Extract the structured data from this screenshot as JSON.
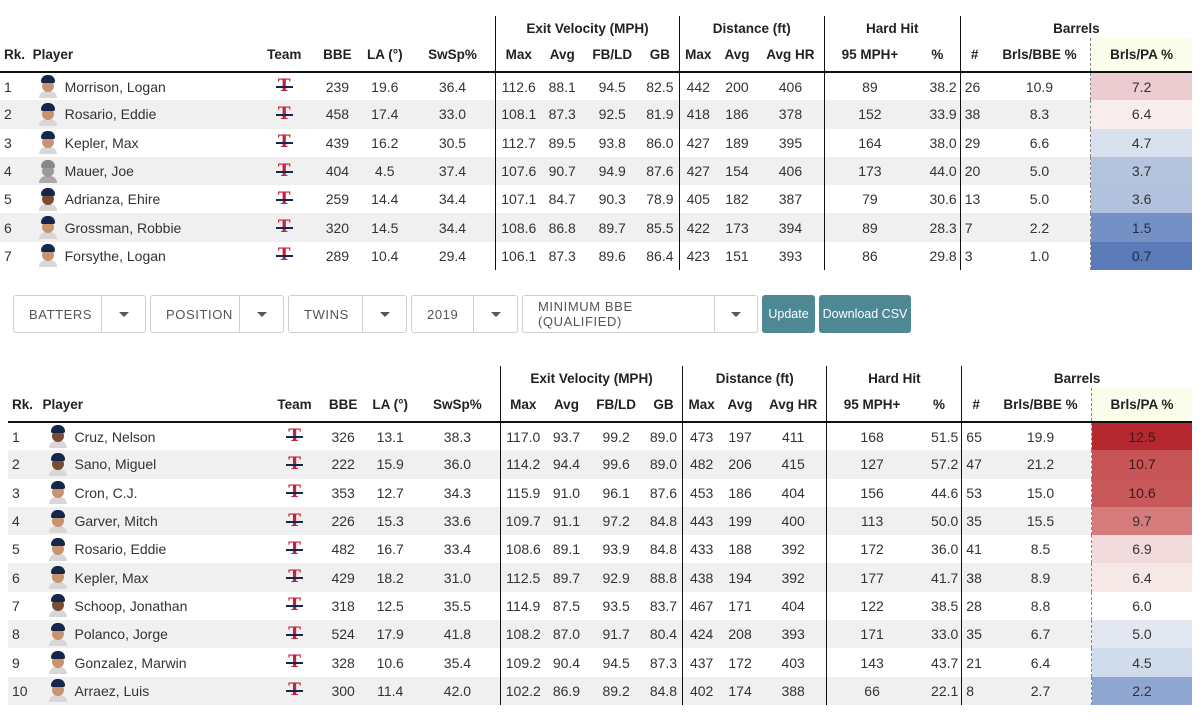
{
  "groups": {
    "exit_velocity": "Exit Velocity (MPH)",
    "distance": "Distance (ft)",
    "hard_hit": "Hard Hit",
    "barrels": "Barrels"
  },
  "columns": {
    "rk": "Rk.",
    "player": "Player",
    "team": "Team",
    "bbe": "BBE",
    "la": "LA (°)",
    "swsp": "SwSp%",
    "ev_max": "Max",
    "ev_avg": "Avg",
    "ev_fbld": "FB/LD",
    "ev_gb": "GB",
    "dist_max": "Max",
    "dist_avg": "Avg",
    "dist_avghr": "Avg HR",
    "hh_95": "95 MPH+",
    "hh_pct": "%",
    "brl_num": "#",
    "brl_bbe": "Brls/BBE %",
    "brl_pa": "Brls/PA %"
  },
  "team_logo": "T",
  "colors": {
    "twins_red": "#c6203e",
    "twins_navy": "#13284c",
    "button_teal": "#4e8894",
    "heat_red": "#b5282f",
    "heat_blue": "#4a6fb0"
  },
  "table_top": [
    {
      "rk": "1",
      "player": "Morrison, Logan",
      "bbe": "239",
      "la": "19.6",
      "swsp": "36.4",
      "ev_max": "112.6",
      "ev_avg": "88.1",
      "ev_fbld": "94.5",
      "ev_gb": "82.5",
      "dist_max": "442",
      "dist_avg": "200",
      "dist_avghr": "406",
      "hh_95": "89",
      "hh_pct": "38.2",
      "brl_num": "26",
      "brl_bbe": "10.9",
      "brl_pa": "7.2",
      "heat": "#ecccd0",
      "face": "light"
    },
    {
      "rk": "2",
      "player": "Rosario, Eddie",
      "bbe": "458",
      "la": "17.4",
      "swsp": "33.0",
      "ev_max": "108.1",
      "ev_avg": "87.3",
      "ev_fbld": "92.5",
      "ev_gb": "81.9",
      "dist_max": "418",
      "dist_avg": "186",
      "dist_avghr": "378",
      "hh_95": "152",
      "hh_pct": "33.9",
      "brl_num": "38",
      "brl_bbe": "8.3",
      "brl_pa": "6.4",
      "heat": "#f9ecec",
      "face": "light"
    },
    {
      "rk": "3",
      "player": "Kepler, Max",
      "bbe": "439",
      "la": "16.2",
      "swsp": "30.5",
      "ev_max": "112.7",
      "ev_avg": "89.5",
      "ev_fbld": "93.8",
      "ev_gb": "86.0",
      "dist_max": "427",
      "dist_avg": "189",
      "dist_avghr": "395",
      "hh_95": "164",
      "hh_pct": "38.0",
      "brl_num": "29",
      "brl_bbe": "6.6",
      "brl_pa": "4.7",
      "heat": "#d9e1ee",
      "face": "light"
    },
    {
      "rk": "4",
      "player": "Mauer, Joe",
      "bbe": "404",
      "la": "4.5",
      "swsp": "37.4",
      "ev_max": "107.6",
      "ev_avg": "90.7",
      "ev_fbld": "94.9",
      "ev_gb": "87.6",
      "dist_max": "427",
      "dist_avg": "154",
      "dist_avghr": "406",
      "hh_95": "173",
      "hh_pct": "44.0",
      "brl_num": "20",
      "brl_bbe": "5.0",
      "brl_pa": "3.7",
      "heat": "#b4c3de",
      "face": "grey"
    },
    {
      "rk": "5",
      "player": "Adrianza, Ehire",
      "bbe": "259",
      "la": "14.4",
      "swsp": "34.4",
      "ev_max": "107.1",
      "ev_avg": "84.7",
      "ev_fbld": "90.3",
      "ev_gb": "78.9",
      "dist_max": "405",
      "dist_avg": "182",
      "dist_avghr": "387",
      "hh_95": "79",
      "hh_pct": "30.6",
      "brl_num": "13",
      "brl_bbe": "5.0",
      "brl_pa": "3.6",
      "heat": "#b2c1dd",
      "face": "dark"
    },
    {
      "rk": "6",
      "player": "Grossman, Robbie",
      "bbe": "320",
      "la": "14.5",
      "swsp": "34.4",
      "ev_max": "108.6",
      "ev_avg": "86.8",
      "ev_fbld": "89.7",
      "ev_gb": "85.5",
      "dist_max": "422",
      "dist_avg": "173",
      "dist_avghr": "394",
      "hh_95": "89",
      "hh_pct": "28.3",
      "brl_num": "7",
      "brl_bbe": "2.2",
      "brl_pa": "1.5",
      "heat": "#7590c4",
      "face": "light"
    },
    {
      "rk": "7",
      "player": "Forsythe, Logan",
      "bbe": "289",
      "la": "10.4",
      "swsp": "29.4",
      "ev_max": "106.1",
      "ev_avg": "87.3",
      "ev_fbld": "89.6",
      "ev_gb": "86.4",
      "dist_max": "423",
      "dist_avg": "151",
      "dist_avghr": "393",
      "hh_95": "86",
      "hh_pct": "29.8",
      "brl_num": "3",
      "brl_bbe": "1.0",
      "brl_pa": "0.7",
      "heat": "#5a7ab8",
      "face": "light"
    }
  ],
  "table_bottom": [
    {
      "rk": "1",
      "player": "Cruz, Nelson",
      "bbe": "326",
      "la": "13.1",
      "swsp": "38.3",
      "ev_max": "117.0",
      "ev_avg": "93.7",
      "ev_fbld": "99.2",
      "ev_gb": "89.0",
      "dist_max": "473",
      "dist_avg": "197",
      "dist_avghr": "411",
      "hh_95": "168",
      "hh_pct": "51.5",
      "brl_num": "65",
      "brl_bbe": "19.9",
      "brl_pa": "12.5",
      "heat": "#b5282f",
      "face": "dark"
    },
    {
      "rk": "2",
      "player": "Sano, Miguel",
      "bbe": "222",
      "la": "15.9",
      "swsp": "36.0",
      "ev_max": "114.2",
      "ev_avg": "94.4",
      "ev_fbld": "99.6",
      "ev_gb": "89.0",
      "dist_max": "482",
      "dist_avg": "206",
      "dist_avghr": "415",
      "hh_95": "127",
      "hh_pct": "57.2",
      "brl_num": "47",
      "brl_bbe": "21.2",
      "brl_pa": "10.7",
      "heat": "#c75457",
      "face": "dark"
    },
    {
      "rk": "3",
      "player": "Cron, C.J.",
      "bbe": "353",
      "la": "12.7",
      "swsp": "34.3",
      "ev_max": "115.9",
      "ev_avg": "91.0",
      "ev_fbld": "96.1",
      "ev_gb": "87.6",
      "dist_max": "453",
      "dist_avg": "186",
      "dist_avghr": "404",
      "hh_95": "156",
      "hh_pct": "44.6",
      "brl_num": "53",
      "brl_bbe": "15.0",
      "brl_pa": "10.6",
      "heat": "#c8585a",
      "face": "light"
    },
    {
      "rk": "4",
      "player": "Garver, Mitch",
      "bbe": "226",
      "la": "15.3",
      "swsp": "33.6",
      "ev_max": "109.7",
      "ev_avg": "91.1",
      "ev_fbld": "97.2",
      "ev_gb": "84.8",
      "dist_max": "443",
      "dist_avg": "199",
      "dist_avghr": "400",
      "hh_95": "113",
      "hh_pct": "50.0",
      "brl_num": "35",
      "brl_bbe": "15.5",
      "brl_pa": "9.7",
      "heat": "#d57b7c",
      "face": "light"
    },
    {
      "rk": "5",
      "player": "Rosario, Eddie",
      "bbe": "482",
      "la": "16.7",
      "swsp": "33.4",
      "ev_max": "108.6",
      "ev_avg": "89.1",
      "ev_fbld": "93.9",
      "ev_gb": "84.8",
      "dist_max": "433",
      "dist_avg": "188",
      "dist_avghr": "392",
      "hh_95": "172",
      "hh_pct": "36.0",
      "brl_num": "41",
      "brl_bbe": "8.5",
      "brl_pa": "6.9",
      "heat": "#f1dadb",
      "face": "light"
    },
    {
      "rk": "6",
      "player": "Kepler, Max",
      "bbe": "429",
      "la": "18.2",
      "swsp": "31.0",
      "ev_max": "112.5",
      "ev_avg": "89.7",
      "ev_fbld": "92.9",
      "ev_gb": "88.8",
      "dist_max": "438",
      "dist_avg": "194",
      "dist_avghr": "392",
      "hh_95": "177",
      "hh_pct": "41.7",
      "brl_num": "38",
      "brl_bbe": "8.9",
      "brl_pa": "6.4",
      "heat": "#f7e8e8",
      "face": "light"
    },
    {
      "rk": "7",
      "player": "Schoop, Jonathan",
      "bbe": "318",
      "la": "12.5",
      "swsp": "35.5",
      "ev_max": "114.9",
      "ev_avg": "87.5",
      "ev_fbld": "93.5",
      "ev_gb": "83.7",
      "dist_max": "467",
      "dist_avg": "171",
      "dist_avghr": "404",
      "hh_95": "122",
      "hh_pct": "38.5",
      "brl_num": "28",
      "brl_bbe": "8.8",
      "brl_pa": "6.0",
      "heat": "#ffffff",
      "face": "dark"
    },
    {
      "rk": "8",
      "player": "Polanco, Jorge",
      "bbe": "524",
      "la": "17.9",
      "swsp": "41.8",
      "ev_max": "108.2",
      "ev_avg": "87.0",
      "ev_fbld": "91.7",
      "ev_gb": "80.4",
      "dist_max": "424",
      "dist_avg": "208",
      "dist_avghr": "393",
      "hh_95": "171",
      "hh_pct": "33.0",
      "brl_num": "35",
      "brl_bbe": "6.7",
      "brl_pa": "5.0",
      "heat": "#e2e7f2",
      "face": "light"
    },
    {
      "rk": "9",
      "player": "Gonzalez, Marwin",
      "bbe": "328",
      "la": "10.6",
      "swsp": "35.4",
      "ev_max": "109.2",
      "ev_avg": "90.4",
      "ev_fbld": "94.5",
      "ev_gb": "87.3",
      "dist_max": "437",
      "dist_avg": "172",
      "dist_avghr": "403",
      "hh_95": "143",
      "hh_pct": "43.7",
      "brl_num": "21",
      "brl_bbe": "6.4",
      "brl_pa": "4.5",
      "heat": "#d0dbec",
      "face": "light"
    },
    {
      "rk": "10",
      "player": "Arraez, Luis",
      "bbe": "300",
      "la": "11.4",
      "swsp": "42.0",
      "ev_max": "102.2",
      "ev_avg": "86.9",
      "ev_fbld": "89.2",
      "ev_gb": "84.8",
      "dist_max": "402",
      "dist_avg": "174",
      "dist_avghr": "388",
      "hh_95": "66",
      "hh_pct": "22.1",
      "brl_num": "8",
      "brl_bbe": "2.7",
      "brl_pa": "2.2",
      "heat": "#8fa6d1",
      "face": "light"
    }
  ],
  "toolbar": {
    "player_type": "BATTERS",
    "position": "POSITION",
    "team": "TWINS",
    "year": "2019",
    "min_bbe": "MINIMUM BBE (QUALIFIED)",
    "update_label": "Update",
    "download_label": "Download CSV"
  }
}
